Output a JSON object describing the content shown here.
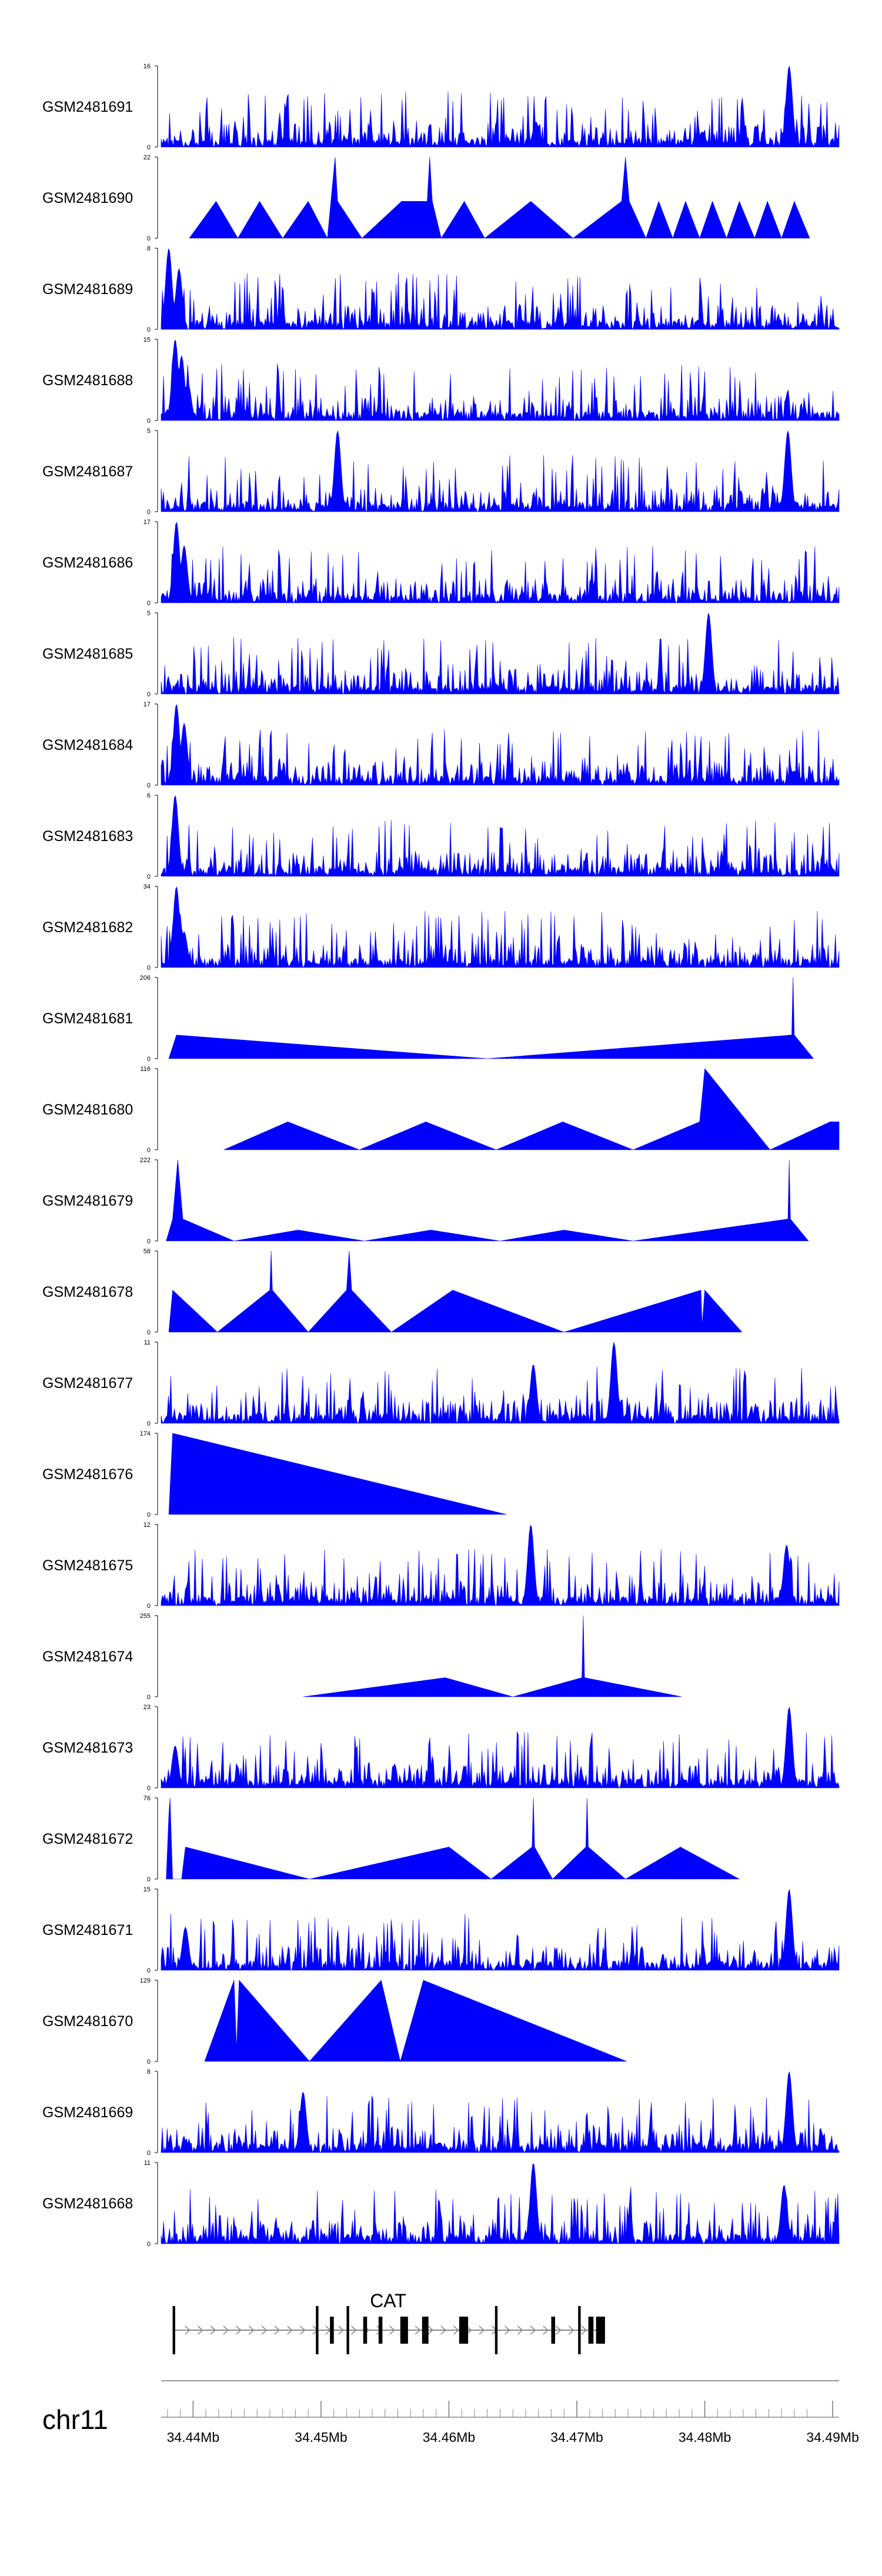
{
  "chart_data": {
    "type": "area",
    "title": "",
    "chromosome": "chr11",
    "xlim": [
      34.4375,
      34.4905
    ],
    "x_ticks": [
      34.44,
      34.45,
      34.46,
      34.47,
      34.48,
      34.49
    ],
    "x_tick_labels": [
      "34.44Mb",
      "34.45Mb",
      "34.46Mb",
      "34.47Mb",
      "34.48Mb",
      "34.49Mb"
    ],
    "color": "#0000ff",
    "gene": {
      "name": "CAT",
      "start": 34.4384,
      "end": 34.4719,
      "exons": [
        [
          34.4384,
          34.4386
        ],
        [
          34.4496,
          34.4498
        ],
        [
          34.4507,
          34.451
        ],
        [
          34.452,
          34.4522
        ],
        [
          34.4533,
          34.4536
        ],
        [
          34.4545,
          34.4548
        ],
        [
          34.4562,
          34.4568
        ],
        [
          34.4579,
          34.4584
        ],
        [
          34.4608,
          34.4615
        ],
        [
          34.4636,
          34.4638
        ],
        [
          34.468,
          34.4683
        ],
        [
          34.4701,
          34.4703
        ],
        [
          34.4709,
          34.4713
        ],
        [
          34.4715,
          34.4722
        ]
      ]
    },
    "series": [
      {
        "name": "GSM2481691",
        "ymax": 16,
        "style": "dense",
        "peaks": [
          {
            "x": 34.4866,
            "v": 16
          },
          {
            "x": 34.4668,
            "v": 5
          },
          {
            "x": 34.4798,
            "v": 3
          }
        ]
      },
      {
        "name": "GSM2481690",
        "ymax": 22,
        "style": "sparse",
        "points": [
          [
            34.4397,
            0
          ],
          [
            34.4418,
            10
          ],
          [
            34.4435,
            0
          ],
          [
            34.4452,
            10
          ],
          [
            34.447,
            0
          ],
          [
            34.449,
            10
          ],
          [
            34.4505,
            0
          ],
          [
            34.4511,
            22
          ],
          [
            34.4513,
            10
          ],
          [
            34.4532,
            0
          ],
          [
            34.4563,
            10
          ],
          [
            34.4583,
            10
          ],
          [
            34.4585,
            22
          ],
          [
            34.4587,
            10
          ],
          [
            34.4594,
            0
          ],
          [
            34.4612,
            10
          ],
          [
            34.4628,
            0
          ],
          [
            34.4664,
            10
          ],
          [
            34.4697,
            0
          ],
          [
            34.4735,
            10
          ],
          [
            34.4738,
            22
          ],
          [
            34.4741,
            10
          ],
          [
            34.4754,
            0
          ],
          [
            34.4764,
            10
          ],
          [
            34.4775,
            0
          ],
          [
            34.4785,
            10
          ],
          [
            34.4796,
            0
          ],
          [
            34.4806,
            10
          ],
          [
            34.4817,
            0
          ],
          [
            34.4827,
            10
          ],
          [
            34.4839,
            0
          ],
          [
            34.4849,
            10
          ],
          [
            34.486,
            0
          ],
          [
            34.487,
            10
          ],
          [
            34.4882,
            0
          ]
        ]
      },
      {
        "name": "GSM2481689",
        "ymax": 8,
        "style": "dense",
        "peaks": [
          {
            "x": 34.4381,
            "v": 8
          },
          {
            "x": 34.4389,
            "v": 6
          }
        ]
      },
      {
        "name": "GSM2481688",
        "ymax": 15,
        "style": "dense",
        "peaks": [
          {
            "x": 34.4386,
            "v": 15
          },
          {
            "x": 34.4391,
            "v": 12
          },
          {
            "x": 34.4396,
            "v": 7
          }
        ]
      },
      {
        "name": "GSM2481687",
        "ymax": 5,
        "style": "dense",
        "peaks": [
          {
            "x": 34.4513,
            "v": 5
          },
          {
            "x": 34.4865,
            "v": 5
          }
        ]
      },
      {
        "name": "GSM2481686",
        "ymax": 17,
        "style": "dense",
        "peaks": [
          {
            "x": 34.4387,
            "v": 17
          },
          {
            "x": 34.4393,
            "v": 12
          }
        ]
      },
      {
        "name": "GSM2481685",
        "ymax": 5,
        "style": "dense",
        "peaks": [
          {
            "x": 34.4803,
            "v": 5
          }
        ]
      },
      {
        "name": "GSM2481684",
        "ymax": 17,
        "style": "dense",
        "peaks": [
          {
            "x": 34.4387,
            "v": 17
          },
          {
            "x": 34.4393,
            "v": 13
          },
          {
            "x": 34.487,
            "v": 3
          }
        ]
      },
      {
        "name": "GSM2481683",
        "ymax": 6,
        "style": "dense",
        "peaks": [
          {
            "x": 34.4386,
            "v": 6
          }
        ]
      },
      {
        "name": "GSM2481682",
        "ymax": 34,
        "style": "dense",
        "peaks": [
          {
            "x": 34.4387,
            "v": 34
          },
          {
            "x": 34.4393,
            "v": 15
          }
        ]
      },
      {
        "name": "GSM2481681",
        "ymax": 206,
        "style": "sparse",
        "points": [
          [
            34.4381,
            0
          ],
          [
            34.4387,
            60
          ],
          [
            34.463,
            0
          ],
          [
            34.4868,
            60
          ],
          [
            34.4869,
            206
          ],
          [
            34.487,
            60
          ],
          [
            34.4885,
            0
          ]
        ]
      },
      {
        "name": "GSM2481680",
        "ymax": 116,
        "style": "sparse",
        "points": [
          [
            34.4424,
            0
          ],
          [
            34.4474,
            40
          ],
          [
            34.453,
            0
          ],
          [
            34.4582,
            40
          ],
          [
            34.4637,
            0
          ],
          [
            34.4689,
            40
          ],
          [
            34.4744,
            0
          ],
          [
            34.4796,
            40
          ],
          [
            34.48,
            116
          ],
          [
            34.4851,
            0
          ],
          [
            34.4898,
            40
          ],
          [
            34.4905,
            40
          ]
        ]
      },
      {
        "name": "GSM2481679",
        "ymax": 222,
        "style": "sparse",
        "points": [
          [
            34.4379,
            0
          ],
          [
            34.4384,
            60
          ],
          [
            34.4388,
            222
          ],
          [
            34.4392,
            60
          ],
          [
            34.4432,
            0
          ],
          [
            34.4482,
            30
          ],
          [
            34.4534,
            0
          ],
          [
            34.4586,
            30
          ],
          [
            34.464,
            0
          ],
          [
            34.469,
            30
          ],
          [
            34.4744,
            0
          ],
          [
            34.4865,
            60
          ],
          [
            34.4866,
            222
          ],
          [
            34.4867,
            60
          ],
          [
            34.4881,
            0
          ]
        ]
      },
      {
        "name": "GSM2481678",
        "ymax": 58,
        "style": "sparse",
        "points": [
          [
            34.4381,
            0
          ],
          [
            34.4384,
            30
          ],
          [
            34.4419,
            0
          ],
          [
            34.446,
            30
          ],
          [
            34.4461,
            58
          ],
          [
            34.4462,
            30
          ],
          [
            34.449,
            0
          ],
          [
            34.452,
            30
          ],
          [
            34.4522,
            58
          ],
          [
            34.4524,
            30
          ],
          [
            34.4555,
            0
          ],
          [
            34.4603,
            30
          ],
          [
            34.469,
            0
          ],
          [
            34.4797,
            30
          ],
          [
            34.4798,
            5
          ],
          [
            34.48,
            30
          ],
          [
            34.4829,
            0
          ]
        ]
      },
      {
        "name": "GSM2481677",
        "ymax": 11,
        "style": "dense",
        "peaks": [
          {
            "x": 34.4729,
            "v": 11
          },
          {
            "x": 34.4666,
            "v": 8
          }
        ]
      },
      {
        "name": "GSM2481676",
        "ymax": 174,
        "style": "sparse",
        "points": [
          [
            34.4381,
            0
          ],
          [
            34.4384,
            174
          ],
          [
            34.4645,
            0
          ]
        ]
      },
      {
        "name": "GSM2481675",
        "ymax": 12,
        "style": "dense",
        "peaks": [
          {
            "x": 34.4664,
            "v": 12
          },
          {
            "x": 34.4864,
            "v": 9
          }
        ]
      },
      {
        "name": "GSM2481674",
        "ymax": 255,
        "style": "sparse",
        "points": [
          [
            34.4486,
            0
          ],
          [
            34.4597,
            60
          ],
          [
            34.465,
            0
          ],
          [
            34.4704,
            60
          ],
          [
            34.4705,
            255
          ],
          [
            34.4706,
            60
          ],
          [
            34.4782,
            0
          ]
        ]
      },
      {
        "name": "GSM2481673",
        "ymax": 23,
        "style": "dense",
        "peaks": [
          {
            "x": 34.4866,
            "v": 23
          },
          {
            "x": 34.4386,
            "v": 12
          }
        ]
      },
      {
        "name": "GSM2481672",
        "ymax": 76,
        "style": "sparse",
        "points": [
          [
            34.4379,
            0
          ],
          [
            34.4381,
            60
          ],
          [
            34.4382,
            76
          ],
          [
            34.4384,
            0
          ],
          [
            34.4391,
            0
          ],
          [
            34.4394,
            30
          ],
          [
            34.4491,
            0
          ],
          [
            34.46,
            30
          ],
          [
            34.4633,
            0
          ],
          [
            34.4665,
            30
          ],
          [
            34.4666,
            76
          ],
          [
            34.4667,
            30
          ],
          [
            34.4681,
            0
          ],
          [
            34.4707,
            30
          ],
          [
            34.4708,
            76
          ],
          [
            34.4709,
            30
          ],
          [
            34.4738,
            0
          ],
          [
            34.4781,
            30
          ],
          [
            34.4827,
            0
          ]
        ]
      },
      {
        "name": "GSM2481671",
        "ymax": 15,
        "style": "dense",
        "peaks": [
          {
            "x": 34.4866,
            "v": 15
          },
          {
            "x": 34.4394,
            "v": 8
          }
        ]
      },
      {
        "name": "GSM2481670",
        "ymax": 129,
        "style": "sparse",
        "points": [
          [
            34.4409,
            0
          ],
          [
            34.4432,
            129
          ],
          [
            34.4434,
            20
          ],
          [
            34.4436,
            129
          ],
          [
            34.4491,
            0
          ],
          [
            34.4547,
            129
          ],
          [
            34.4562,
            0
          ],
          [
            34.458,
            129
          ],
          [
            34.4739,
            0
          ]
        ]
      },
      {
        "name": "GSM2481669",
        "ymax": 8,
        "style": "dense",
        "peaks": [
          {
            "x": 34.4866,
            "v": 8
          },
          {
            "x": 34.4486,
            "v": 6
          }
        ]
      },
      {
        "name": "GSM2481668",
        "ymax": 11,
        "style": "dense",
        "peaks": [
          {
            "x": 34.4666,
            "v": 11
          },
          {
            "x": 34.4862,
            "v": 8
          }
        ]
      }
    ]
  }
}
